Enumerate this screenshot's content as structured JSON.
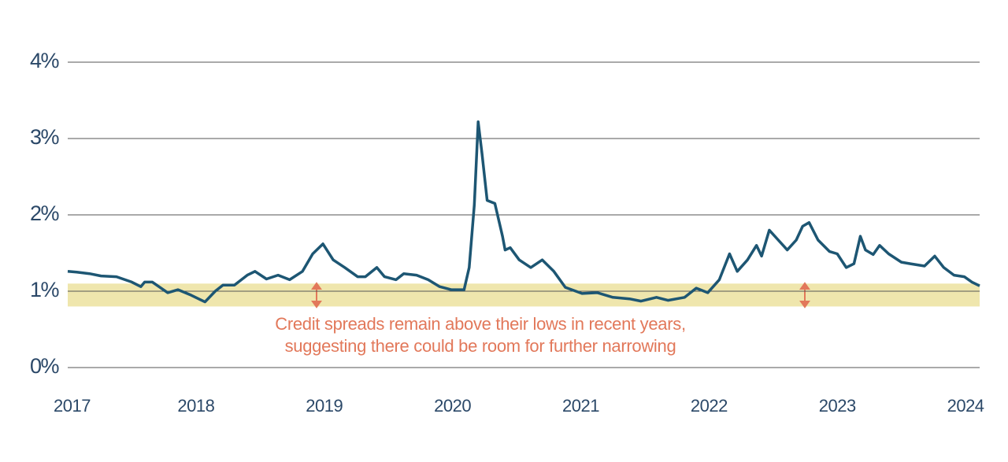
{
  "chart_data": {
    "type": "line",
    "annotation": [
      "Credit spreads remain above their lows in recent years,",
      "suggesting there could be room for further narrowing"
    ],
    "x": [
      2017.0,
      2017.07,
      2017.17,
      2017.26,
      2017.38,
      2017.5,
      2017.57,
      2017.6,
      2017.66,
      2017.78,
      2017.86,
      2017.96,
      2018.07,
      2018.15,
      2018.21,
      2018.3,
      2018.4,
      2018.46,
      2018.55,
      2018.64,
      2018.73,
      2018.83,
      2018.91,
      2018.99,
      2019.07,
      2019.16,
      2019.26,
      2019.32,
      2019.41,
      2019.47,
      2019.56,
      2019.62,
      2019.72,
      2019.81,
      2019.9,
      2019.99,
      2020.09,
      2020.13,
      2020.17,
      2020.2,
      2020.23,
      2020.27,
      2020.33,
      2020.39,
      2020.41,
      2020.45,
      2020.52,
      2020.61,
      2020.7,
      2020.79,
      2020.88,
      2021.01,
      2021.13,
      2021.25,
      2021.38,
      2021.47,
      2021.59,
      2021.68,
      2021.81,
      2021.9,
      2021.99,
      2022.08,
      2022.16,
      2022.22,
      2022.3,
      2022.37,
      2022.41,
      2022.47,
      2022.54,
      2022.61,
      2022.68,
      2022.73,
      2022.78,
      2022.85,
      2022.94,
      2023.0,
      2023.07,
      2023.13,
      2023.18,
      2023.22,
      2023.28,
      2023.33,
      2023.4,
      2023.5,
      2023.57,
      2023.68,
      2023.76,
      2023.83,
      2023.91,
      2023.99,
      2024.05,
      2024.11
    ],
    "values": [
      1.26,
      1.25,
      1.23,
      1.2,
      1.19,
      1.12,
      1.06,
      1.12,
      1.12,
      0.98,
      1.02,
      0.95,
      0.86,
      1.0,
      1.08,
      1.08,
      1.21,
      1.26,
      1.16,
      1.21,
      1.15,
      1.26,
      1.49,
      1.62,
      1.41,
      1.31,
      1.19,
      1.19,
      1.31,
      1.19,
      1.15,
      1.23,
      1.21,
      1.15,
      1.06,
      1.02,
      1.02,
      1.31,
      2.13,
      3.22,
      2.8,
      2.19,
      2.15,
      1.72,
      1.54,
      1.57,
      1.41,
      1.31,
      1.41,
      1.26,
      1.05,
      0.97,
      0.98,
      0.92,
      0.9,
      0.87,
      0.92,
      0.88,
      0.92,
      1.04,
      0.98,
      1.15,
      1.49,
      1.26,
      1.41,
      1.6,
      1.46,
      1.8,
      1.67,
      1.54,
      1.67,
      1.85,
      1.9,
      1.67,
      1.52,
      1.49,
      1.31,
      1.36,
      1.72,
      1.54,
      1.48,
      1.6,
      1.49,
      1.38,
      1.36,
      1.33,
      1.46,
      1.31,
      1.21,
      1.19,
      1.12,
      1.07
    ],
    "color": "#1d5673",
    "band": {
      "range": [
        0.8,
        1.1
      ],
      "color": "#efe6ad"
    },
    "xlim": [
      2017.0,
      2024.11
    ],
    "xticks": [
      2017,
      2018,
      2019,
      2020,
      2021,
      2022,
      2023,
      2024
    ],
    "ylim": [
      0,
      4
    ],
    "yticks": [
      {
        "value": 0,
        "label": "0%"
      },
      {
        "value": 1,
        "label": "1%"
      },
      {
        "value": 2,
        "label": "2%"
      },
      {
        "value": 3,
        "label": "3%"
      },
      {
        "value": 4,
        "label": "4%"
      }
    ],
    "grid": true
  }
}
